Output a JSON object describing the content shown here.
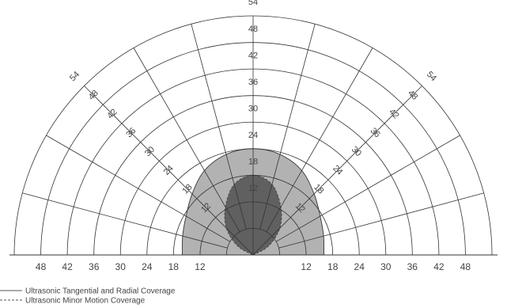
{
  "chart_data": {
    "type": "polar-coverage",
    "r_max": 54,
    "rings": [
      6,
      12,
      18,
      24,
      30,
      36,
      42,
      48,
      54
    ],
    "spokes_deg": [
      0,
      15,
      30,
      45,
      60,
      75,
      90,
      105,
      120,
      135,
      150,
      165,
      180
    ],
    "labeled_spokes_deg": [
      45,
      90,
      135
    ],
    "tick_labels": [
      "12",
      "18",
      "24",
      "30",
      "36",
      "42",
      "48",
      "54"
    ],
    "baseline_left_labels": [
      "48",
      "42",
      "36",
      "30",
      "24",
      "18",
      "12"
    ],
    "baseline_right_labels": [
      "12",
      "18",
      "24",
      "30",
      "36",
      "42",
      "48"
    ],
    "series": [
      {
        "name": "Ultrasonic Tangential and Radial Coverage",
        "line_style": "solid",
        "fill": "#b2b2b2",
        "boundary": [
          {
            "angle": 0,
            "r": 16
          },
          {
            "angle": 15,
            "r": 16.5
          },
          {
            "angle": 30,
            "r": 17.5
          },
          {
            "angle": 45,
            "r": 19.5
          },
          {
            "angle": 60,
            "r": 22
          },
          {
            "angle": 75,
            "r": 23.5
          },
          {
            "angle": 90,
            "r": 24
          },
          {
            "angle": 105,
            "r": 23.5
          },
          {
            "angle": 120,
            "r": 22
          },
          {
            "angle": 135,
            "r": 19.5
          },
          {
            "angle": 150,
            "r": 17.5
          },
          {
            "angle": 165,
            "r": 16.5
          },
          {
            "angle": 180,
            "r": 16
          }
        ]
      },
      {
        "name": "Ultrasonic Minor Motion Coverage",
        "line_style": "dashed",
        "fill": "#606060",
        "boundary": [
          {
            "angle": 0,
            "r": 0
          },
          {
            "angle": 30,
            "r": 4
          },
          {
            "angle": 45,
            "r": 8.5
          },
          {
            "angle": 60,
            "r": 12.5
          },
          {
            "angle": 75,
            "r": 16.5
          },
          {
            "angle": 90,
            "r": 18
          },
          {
            "angle": 105,
            "r": 16.5
          },
          {
            "angle": 120,
            "r": 12.5
          },
          {
            "angle": 135,
            "r": 8.5
          },
          {
            "angle": 150,
            "r": 4
          },
          {
            "angle": 180,
            "r": 0
          }
        ]
      }
    ],
    "legend": [
      {
        "label": "Ultrasonic Tangential and Radial Coverage",
        "line_style": "solid"
      },
      {
        "label": "Ultrasonic Minor Motion Coverage",
        "line_style": "dashed"
      }
    ]
  }
}
